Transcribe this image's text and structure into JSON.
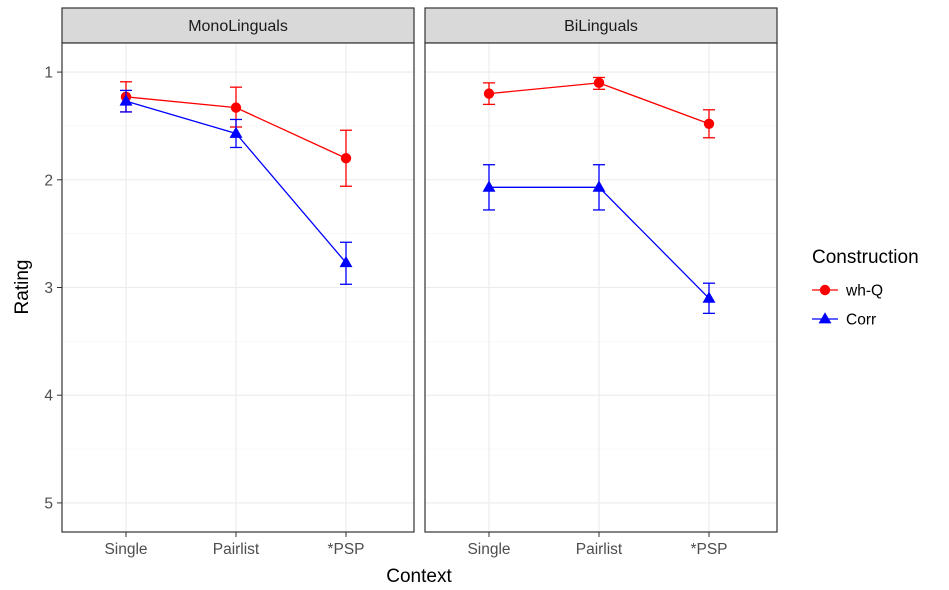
{
  "chart_data": {
    "type": "line",
    "x_title": "Context",
    "y_title": "Rating",
    "categories": [
      "Single",
      "Pairlist",
      "*PSP"
    ],
    "y_range": [
      0.73,
      5.27
    ],
    "y_reversed": true,
    "y_ticks": [
      1,
      2,
      3,
      4,
      5
    ],
    "y_tick_labels": [
      "1",
      "2",
      "3",
      "4",
      "5"
    ],
    "grid": true,
    "legend_position": "right",
    "legend": {
      "title": "Construction",
      "entries": [
        {
          "label": "wh-Q",
          "color": "#ff0000",
          "shape": "circle"
        },
        {
          "label": "Corr",
          "color": "#0000ff",
          "shape": "triangle"
        }
      ]
    },
    "panels": [
      {
        "label": "MonoLinguals",
        "series": [
          {
            "name": "wh-Q",
            "color": "#ff0000",
            "shape": "circle",
            "values": [
              1.23,
              1.33,
              1.8
            ],
            "error_low": [
              1.09,
              1.14,
              1.54
            ],
            "error_high": [
              1.37,
              1.51,
              2.06
            ]
          },
          {
            "name": "Corr",
            "color": "#0000ff",
            "shape": "triangle",
            "values": [
              1.27,
              1.57,
              2.77
            ],
            "error_low": [
              1.17,
              1.44,
              2.58
            ],
            "error_high": [
              1.37,
              1.7,
              2.97
            ]
          }
        ]
      },
      {
        "label": "BiLinguals",
        "series": [
          {
            "name": "wh-Q",
            "color": "#ff0000",
            "shape": "circle",
            "values": [
              1.2,
              1.1,
              1.48
            ],
            "error_low": [
              1.1,
              1.05,
              1.35
            ],
            "error_high": [
              1.3,
              1.16,
              1.61
            ]
          },
          {
            "name": "Corr",
            "color": "#0000ff",
            "shape": "triangle",
            "values": [
              2.07,
              2.07,
              3.1
            ],
            "error_low": [
              1.86,
              1.86,
              2.96
            ],
            "error_high": [
              2.28,
              2.28,
              3.24
            ]
          }
        ]
      }
    ]
  }
}
